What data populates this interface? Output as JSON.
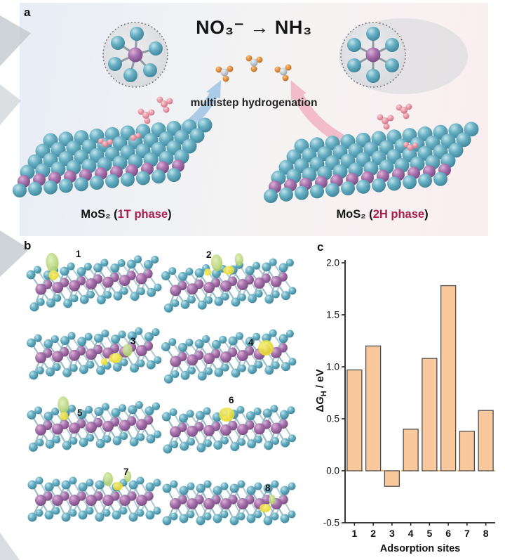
{
  "figure": {
    "panel_a": {
      "label": "a",
      "reaction_title": "NO₃⁻ → NH₃",
      "arrow_caption": "multistep hydrogenation",
      "left_material": {
        "name": "MoS₂ (",
        "phase": "1T phase",
        "close": ")"
      },
      "right_material": {
        "name": "MoS₂ (",
        "phase": "2H phase",
        "close": ")"
      }
    },
    "panel_b": {
      "label": "b",
      "sites": [
        "1",
        "2",
        "3",
        "4",
        "5",
        "6",
        "7",
        "8"
      ]
    },
    "panel_c": {
      "label": "c",
      "ylabel_parts": {
        "delta": "Δ",
        "symbol": "G",
        "subscript": "H",
        "units": " / eV"
      }
    }
  },
  "chart_data": {
    "type": "bar",
    "categories": [
      "1",
      "2",
      "3",
      "4",
      "5",
      "6",
      "7",
      "8"
    ],
    "values": [
      0.97,
      1.2,
      -0.15,
      0.4,
      1.08,
      1.78,
      0.38,
      0.58
    ],
    "title": "",
    "xlabel": "Adsorption sites",
    "ylabel": "ΔG_H / eV",
    "ylim": [
      -0.5,
      2.0
    ],
    "yticks": [
      "2.0",
      "1.5",
      "1.0",
      "0.5",
      "0.0",
      "-0.5"
    ],
    "grid": false,
    "legend": null,
    "bar_color": "#f9c99d",
    "bar_edge": "#4d4d4d",
    "zero_line_color": "#e09a3a",
    "zero_line_style": "dashed"
  },
  "colors": {
    "phase_label": "#a6204e",
    "sulfur_atom": "#5fa8bd",
    "molybdenum_atom": "#a36aa8",
    "isosurface_yellow": "#f2e23a",
    "isosurface_green": "#bfe08a",
    "arrow_blue": "#a9c9e6",
    "arrow_pink": "#f2bac8"
  }
}
